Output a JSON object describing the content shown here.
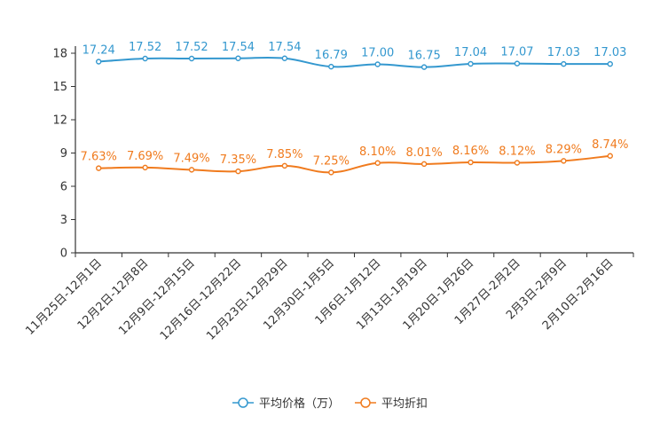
{
  "chart_data": {
    "type": "line",
    "categories": [
      "11月25日-12月1日",
      "12月2日-12月8日",
      "12月9日-12月15日",
      "12月16日-12月22日",
      "12月23日-12月29日",
      "12月30日-1月5日",
      "1月6日-1月12日",
      "1月13日-1月19日",
      "1月20日-1月26日",
      "1月27日-2月2日",
      "2月3日-2月9日",
      "2月10日-2月16日"
    ],
    "ylim": [
      0,
      18
    ],
    "yticks": [
      0,
      3,
      6,
      9,
      12,
      15,
      18
    ],
    "series": [
      {
        "name": "平均价格（万）",
        "color": "#3498cf",
        "values": [
          17.24,
          17.52,
          17.52,
          17.54,
          17.54,
          16.79,
          17.0,
          16.75,
          17.04,
          17.07,
          17.03,
          17.03
        ],
        "labels": [
          "17.24",
          "17.52",
          "17.52",
          "17.54",
          "17.54",
          "16.79",
          "17.00",
          "16.75",
          "17.04",
          "17.07",
          "17.03",
          "17.03"
        ]
      },
      {
        "name": "平均折扣",
        "color": "#f07b1e",
        "values": [
          7.63,
          7.69,
          7.49,
          7.35,
          7.85,
          7.25,
          8.1,
          8.01,
          8.16,
          8.12,
          8.29,
          8.74
        ],
        "labels": [
          "7.63%",
          "7.69%",
          "7.49%",
          "7.35%",
          "7.85%",
          "7.25%",
          "8.10%",
          "8.01%",
          "8.16%",
          "8.12%",
          "8.29%",
          "8.74%"
        ]
      }
    ]
  }
}
